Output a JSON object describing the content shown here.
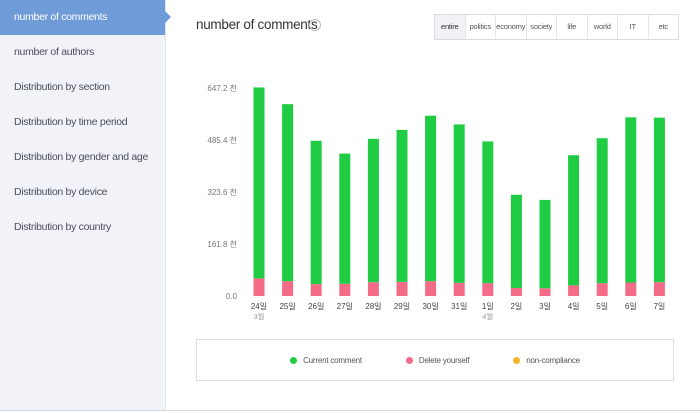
{
  "sidebar": {
    "items": [
      {
        "label": "number of comments",
        "active": true
      },
      {
        "label": "number of authors",
        "active": false
      },
      {
        "label": "Distribution by section",
        "active": false
      },
      {
        "label": "Distribution by time period",
        "active": false
      },
      {
        "label": "Distribution by gender and age",
        "active": false
      },
      {
        "label": "Distribution by device",
        "active": false
      },
      {
        "label": "Distribution by country",
        "active": false
      }
    ]
  },
  "main": {
    "title": "number of comments",
    "info_icon": "i",
    "tabs": [
      {
        "label": "entire",
        "active": true
      },
      {
        "label": "politics",
        "active": false
      },
      {
        "label": "economy",
        "active": false
      },
      {
        "label": "society",
        "active": false
      },
      {
        "label": "life",
        "active": false
      },
      {
        "label": "world",
        "active": false
      },
      {
        "label": "IT",
        "active": false
      },
      {
        "label": "etc",
        "active": false
      }
    ]
  },
  "colors": {
    "current": "#1fcc44",
    "deleted": "#f46b87",
    "noncompliance": "#f5b223",
    "accent": "#6f9bd8"
  },
  "chart_data": {
    "type": "bar",
    "stacked": true,
    "categories": [
      "24일",
      "25일",
      "26일",
      "27일",
      "28일",
      "29일",
      "30일",
      "31일",
      "1일",
      "2일",
      "3일",
      "4일",
      "5일",
      "6일",
      "7일"
    ],
    "sublabels": [
      "3월",
      "",
      "",
      "",
      "",
      "",
      "",
      "",
      "4월",
      "",
      "",
      "",
      "",
      "",
      ""
    ],
    "series": [
      {
        "name": "Current comment",
        "values": [
          594,
          551,
          446,
          405,
          446,
          473,
          515,
          493,
          441,
          290,
          275,
          405,
          451,
          514,
          512
        ]
      },
      {
        "name": "Delete yourself",
        "values": [
          55,
          46,
          37,
          38,
          43,
          44,
          46,
          41,
          40,
          25,
          24,
          33,
          40,
          42,
          43
        ]
      },
      {
        "name": "non-compliance",
        "values": [
          0,
          0,
          0,
          0,
          0,
          0,
          0,
          0,
          0,
          0,
          0,
          0,
          0,
          0,
          0
        ]
      }
    ],
    "yticks": [
      "0.0",
      "161.8 천",
      "323.6 천",
      "485.4 천",
      "647.2 천"
    ],
    "ylim": [
      0,
      647.2
    ],
    "grid": false,
    "legend_position": "bottom"
  }
}
